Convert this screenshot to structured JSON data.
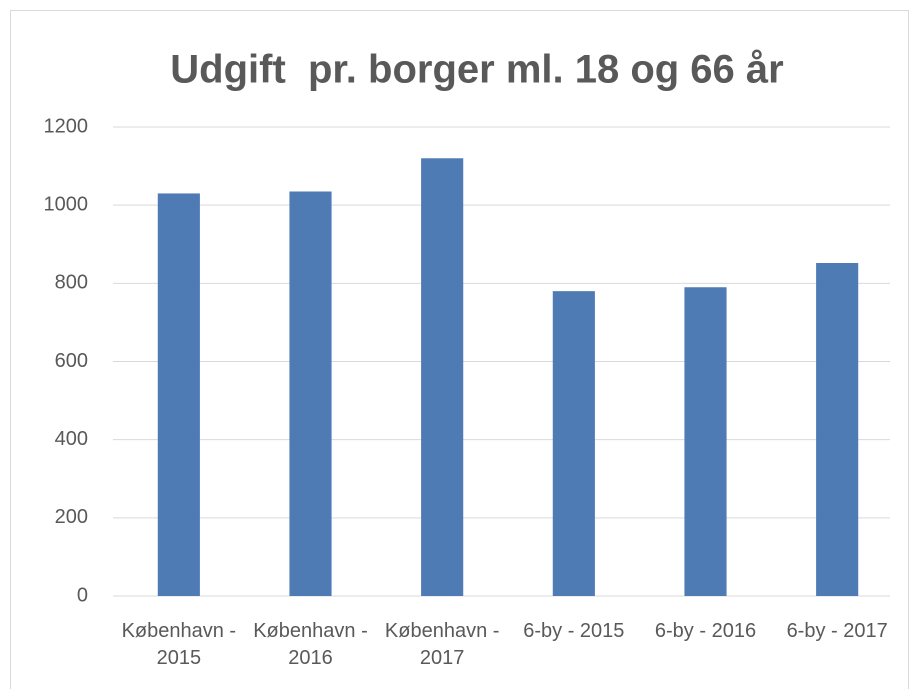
{
  "chart_data": {
    "type": "bar",
    "title": "Udgift  pr. borger ml. 18 og 66 år",
    "categories": [
      "København - 2015",
      "København - 2016",
      "København - 2017",
      "6-by - 2015",
      "6-by - 2016",
      "6-by - 2017"
    ],
    "values": [
      1030,
      1035,
      1120,
      780,
      790,
      852
    ],
    "color": "#4f7bb5",
    "ylim": [
      0,
      1200
    ],
    "yticks": [
      0,
      200,
      400,
      600,
      800,
      1000,
      1200
    ],
    "grid": true
  }
}
